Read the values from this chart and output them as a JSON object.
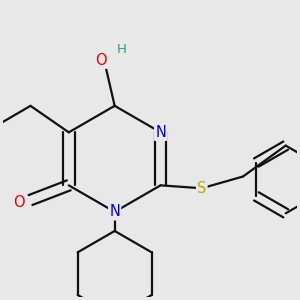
{
  "background_color": "#e8e8e8",
  "atom_colors": {
    "C": "#000000",
    "N": "#0000ee",
    "O": "#ee0000",
    "S": "#bbaa00",
    "H": "#2a9d8f"
  },
  "bond_color": "#111111",
  "bond_width": 1.6,
  "font_size_atom": 10.5
}
